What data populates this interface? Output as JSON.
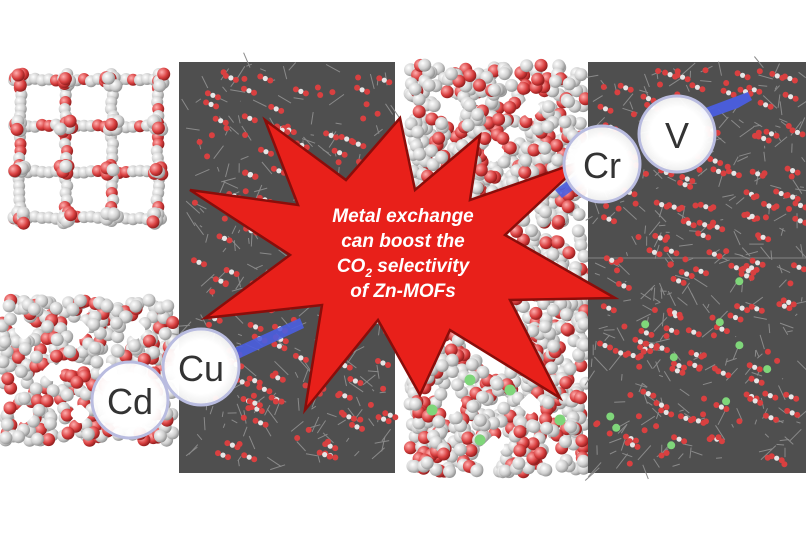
{
  "metals": {
    "cd": "Cd",
    "cu": "Cu",
    "cr": "Cr",
    "v": "V"
  },
  "burst": {
    "line1": "Metal exchange",
    "line2": "can boost the",
    "line3_pre": "CO",
    "line3_sub": "2",
    "line3_post": " selectivity",
    "line4": "of Zn-MOFs"
  },
  "colors": {
    "burst_fill": "#e8201a",
    "burst_stroke": "#8a0d0a",
    "panel_dark": "#4f4f4f",
    "oxygen": "#d94040",
    "carbon": "#c8c8c8",
    "halo": "#5566dd",
    "circle_stroke": "#b9bce0",
    "green_atom": "#7fd67a"
  }
}
